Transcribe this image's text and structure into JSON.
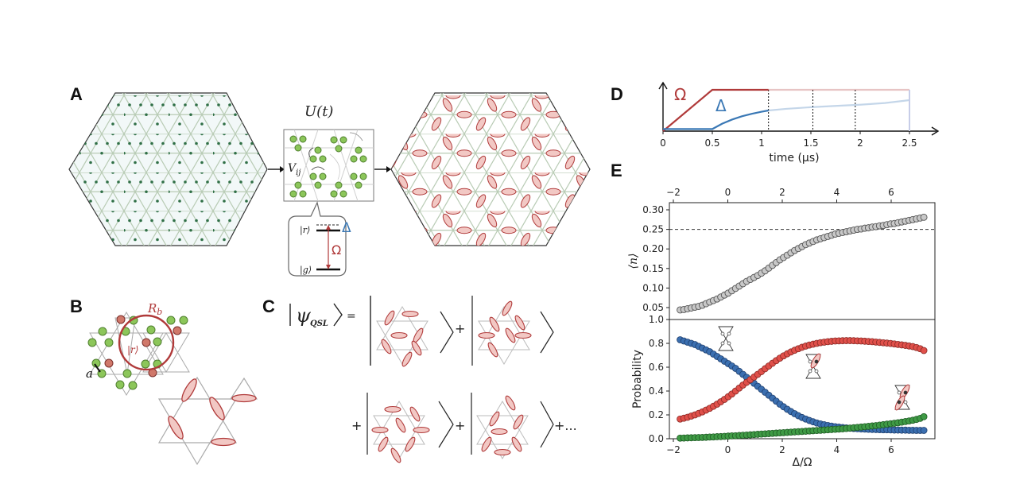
{
  "figure": {
    "panels": {
      "A": {
        "label": "A",
        "operator_label": "U(t)",
        "interaction_label": "V_ij",
        "level_diagram": {
          "rydberg_state": "|r⟩",
          "ground_state": "|g⟩",
          "detuning_symbol": "Δ",
          "rabi_symbol": "Ω"
        }
      },
      "B": {
        "label": "B",
        "blockade_radius_label": "R_b",
        "rydberg_state_label": "|r⟩",
        "lattice_spacing_label": "a"
      },
      "C": {
        "label": "C",
        "lhs": "ψ",
        "lhs_subscript": "QSL",
        "equals": "=",
        "plus": "+",
        "ellipsis": "+..."
      },
      "D": {
        "label": "D",
        "omega_symbol": "Ω",
        "delta_symbol": "Δ"
      },
      "E": {
        "label": "E"
      }
    },
    "colors": {
      "omega_red": "#b03a3a",
      "delta_blue": "#3a78b5",
      "atom_green": "#8cc65a",
      "atom_red": "#d0786a",
      "dimer_fill": "#f2c8c4",
      "dimer_stroke": "#b03a3a",
      "series_blue": "#3b6fb0",
      "series_red": "#e0504a",
      "series_green": "#3f9a45",
      "series_gray": "#c8c8c8"
    }
  },
  "chart_data": [
    {
      "id": "D",
      "type": "line",
      "title": "",
      "xlabel": "time (μs)",
      "ylabel": "",
      "x_ticks": [
        "0",
        "0.5",
        "1",
        "1.5",
        "2",
        "2.5"
      ],
      "xlim": [
        0,
        2.5
      ],
      "series": [
        {
          "name": "Ω",
          "x": [
            0,
            0.5,
            1.07,
            2.5
          ],
          "y": [
            0,
            1.0,
            1.0,
            1.0
          ],
          "faded_after": 1.07
        },
        {
          "name": "Δ",
          "x": [
            0,
            0.5,
            0.6,
            0.7,
            0.8,
            0.9,
            1.0,
            1.07,
            1.25,
            1.5,
            1.75,
            2.0,
            2.25,
            2.5
          ],
          "y": [
            0.05,
            0.05,
            0.18,
            0.28,
            0.36,
            0.42,
            0.47,
            0.5,
            0.54,
            0.58,
            0.61,
            0.64,
            0.68,
            0.75
          ],
          "faded_after": 1.07
        }
      ],
      "vlines_dashed": [
        1.07,
        1.52,
        1.95
      ]
    },
    {
      "id": "E-top",
      "type": "scatter",
      "xlabel": "",
      "ylabel": "⟨n⟩",
      "x_ticks": [
        "−2",
        "0",
        "2",
        "4",
        "6"
      ],
      "y_ticks": [
        "0.05",
        "0.10",
        "0.15",
        "0.20",
        "0.25",
        "0.30"
      ],
      "xlim": [
        -2.15,
        7.6
      ],
      "ylim": [
        0.035,
        0.32
      ],
      "hline_dashed": 0.25,
      "series": [
        {
          "name": "⟨n⟩",
          "x_range": [
            -1.75,
            7.2
          ],
          "y": [
            0.044,
            0.045,
            0.047,
            0.049,
            0.051,
            0.053,
            0.056,
            0.06,
            0.064,
            0.068,
            0.072,
            0.077,
            0.082,
            0.087,
            0.093,
            0.099,
            0.105,
            0.111,
            0.117,
            0.122,
            0.127,
            0.132,
            0.138,
            0.144,
            0.151,
            0.158,
            0.165,
            0.172,
            0.178,
            0.184,
            0.19,
            0.196,
            0.201,
            0.206,
            0.211,
            0.215,
            0.219,
            0.223,
            0.226,
            0.229,
            0.232,
            0.235,
            0.238,
            0.24,
            0.242,
            0.244,
            0.246,
            0.248,
            0.25,
            0.251,
            0.253,
            0.254,
            0.256,
            0.257,
            0.259,
            0.26,
            0.262,
            0.264,
            0.265,
            0.267,
            0.269,
            0.271,
            0.273,
            0.275,
            0.277,
            0.279,
            0.281
          ]
        }
      ]
    },
    {
      "id": "E-bottom",
      "type": "scatter",
      "xlabel": "Δ/Ω",
      "ylabel": "Probability",
      "x_ticks": [
        "−2",
        "0",
        "2",
        "4",
        "6"
      ],
      "y_ticks": [
        "0.0",
        "0.2",
        "0.4",
        "0.6",
        "0.8",
        "1.0"
      ],
      "xlim": [
        -2.15,
        7.6
      ],
      "ylim": [
        0.0,
        1.0
      ],
      "series": [
        {
          "name": "blue",
          "x_range": [
            -1.75,
            7.2
          ],
          "y": [
            0.83,
            0.82,
            0.81,
            0.8,
            0.79,
            0.775,
            0.76,
            0.745,
            0.73,
            0.71,
            0.69,
            0.67,
            0.65,
            0.63,
            0.61,
            0.59,
            0.565,
            0.54,
            0.515,
            0.49,
            0.465,
            0.44,
            0.415,
            0.39,
            0.365,
            0.34,
            0.315,
            0.29,
            0.268,
            0.247,
            0.228,
            0.21,
            0.193,
            0.178,
            0.165,
            0.153,
            0.142,
            0.132,
            0.124,
            0.117,
            0.111,
            0.106,
            0.101,
            0.097,
            0.094,
            0.091,
            0.088,
            0.086,
            0.084,
            0.082,
            0.081,
            0.079,
            0.078,
            0.077,
            0.076,
            0.075,
            0.075,
            0.074,
            0.073,
            0.073,
            0.072,
            0.072,
            0.071,
            0.071,
            0.07,
            0.07,
            0.07
          ]
        },
        {
          "name": "red",
          "x_range": [
            -1.75,
            7.2
          ],
          "y": [
            0.165,
            0.172,
            0.18,
            0.19,
            0.2,
            0.212,
            0.225,
            0.24,
            0.255,
            0.272,
            0.29,
            0.31,
            0.33,
            0.352,
            0.375,
            0.4,
            0.425,
            0.45,
            0.473,
            0.495,
            0.517,
            0.54,
            0.563,
            0.587,
            0.61,
            0.633,
            0.655,
            0.676,
            0.695,
            0.712,
            0.728,
            0.742,
            0.755,
            0.767,
            0.777,
            0.786,
            0.793,
            0.8,
            0.806,
            0.81,
            0.814,
            0.817,
            0.82,
            0.821,
            0.822,
            0.823,
            0.823,
            0.822,
            0.821,
            0.82,
            0.818,
            0.816,
            0.814,
            0.811,
            0.808,
            0.805,
            0.802,
            0.799,
            0.795,
            0.791,
            0.787,
            0.783,
            0.778,
            0.773,
            0.765,
            0.755,
            0.74
          ]
        },
        {
          "name": "green",
          "x_range": [
            -1.75,
            7.2
          ],
          "y": [
            0.005,
            0.006,
            0.007,
            0.008,
            0.009,
            0.01,
            0.011,
            0.012,
            0.014,
            0.015,
            0.017,
            0.018,
            0.02,
            0.022,
            0.024,
            0.025,
            0.027,
            0.029,
            0.031,
            0.033,
            0.035,
            0.037,
            0.039,
            0.041,
            0.043,
            0.045,
            0.047,
            0.049,
            0.051,
            0.053,
            0.055,
            0.057,
            0.059,
            0.061,
            0.063,
            0.065,
            0.067,
            0.069,
            0.071,
            0.073,
            0.075,
            0.077,
            0.079,
            0.081,
            0.083,
            0.086,
            0.089,
            0.092,
            0.095,
            0.098,
            0.101,
            0.104,
            0.107,
            0.11,
            0.114,
            0.118,
            0.122,
            0.126,
            0.13,
            0.134,
            0.139,
            0.144,
            0.149,
            0.155,
            0.162,
            0.171,
            0.185
          ]
        }
      ]
    }
  ]
}
